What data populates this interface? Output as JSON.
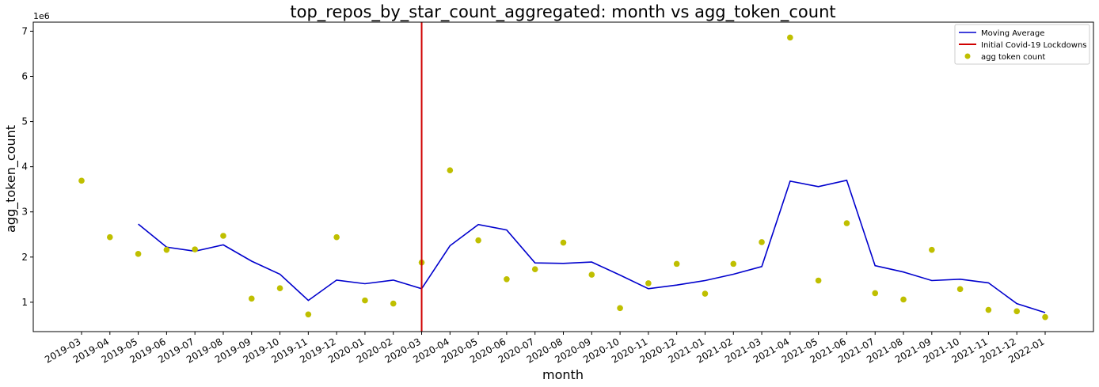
{
  "chart_data": {
    "type": "scatter",
    "title": "top_repos_by_star_count_aggregated: month vs agg_token_count",
    "xlabel": "month",
    "ylabel": "agg_token_count",
    "y_scale_label": "1e6",
    "ylim": [
      350000,
      7200000
    ],
    "y_ticks": [
      1000000,
      2000000,
      3000000,
      4000000,
      5000000,
      6000000,
      7000000
    ],
    "y_tick_labels": [
      "1",
      "2",
      "3",
      "4",
      "5",
      "6",
      "7"
    ],
    "categories": [
      "2019-03",
      "2019-04",
      "2019-05",
      "2019-06",
      "2019-07",
      "2019-08",
      "2019-09",
      "2019-10",
      "2019-11",
      "2019-12",
      "2020-01",
      "2020-02",
      "2020-03",
      "2020-04",
      "2020-05",
      "2020-06",
      "2020-07",
      "2020-08",
      "2020-09",
      "2020-10",
      "2020-11",
      "2020-12",
      "2021-01",
      "2021-02",
      "2021-03",
      "2021-04",
      "2021-05",
      "2021-06",
      "2021-07",
      "2021-08",
      "2021-09",
      "2021-10",
      "2021-11",
      "2021-12",
      "2022-01"
    ],
    "legend_position": "top-right",
    "grid": false,
    "series": [
      {
        "name": "agg token count",
        "kind": "scatter",
        "color": "#bfbf00",
        "values": [
          3690000,
          2440000,
          2070000,
          2160000,
          2170000,
          2470000,
          1080000,
          1310000,
          730000,
          2440000,
          1040000,
          970000,
          1880000,
          3920000,
          2370000,
          1510000,
          1730000,
          2320000,
          1610000,
          870000,
          1420000,
          1850000,
          1190000,
          1850000,
          2330000,
          6860000,
          1480000,
          2750000,
          1200000,
          1060000,
          2160000,
          1290000,
          830000,
          800000,
          670000
        ]
      },
      {
        "name": "Moving Average",
        "kind": "line",
        "color": "#0000cd",
        "values": [
          null,
          null,
          2730000,
          2220000,
          2130000,
          2270000,
          1910000,
          1620000,
          1040000,
          1490000,
          1410000,
          1490000,
          1300000,
          2250000,
          2720000,
          2600000,
          1870000,
          1860000,
          1890000,
          1600000,
          1300000,
          1380000,
          1480000,
          1620000,
          1790000,
          3680000,
          3560000,
          3700000,
          1810000,
          1670000,
          1480000,
          1510000,
          1430000,
          970000,
          770000
        ]
      },
      {
        "name": "Initial Covid-19 Lockdowns",
        "kind": "vline",
        "color": "#d00000",
        "x": "2020-03"
      }
    ]
  }
}
